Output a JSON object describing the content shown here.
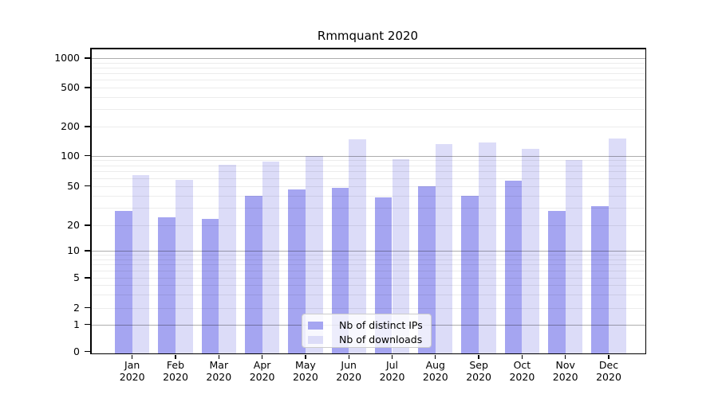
{
  "title": "Rmmquant 2020",
  "legend": {
    "items": [
      {
        "label": "Nb of distinct IPs"
      },
      {
        "label": "Nb of downloads"
      }
    ]
  },
  "chart_data": {
    "type": "bar",
    "title": "Rmmquant 2020",
    "x_months": [
      "Jan",
      "Feb",
      "Mar",
      "Apr",
      "May",
      "Jun",
      "Jul",
      "Aug",
      "Sep",
      "Oct",
      "Nov",
      "Dec"
    ],
    "x_year": "2020",
    "series": [
      {
        "name": "Nb of distinct IPs",
        "color": "#a5a5f1",
        "values": [
          28,
          24,
          23,
          40,
          46,
          48,
          38,
          50,
          40,
          56,
          28,
          31
        ]
      },
      {
        "name": "Nb of downloads",
        "color": "#dcdcf8",
        "values": [
          64,
          57,
          81,
          87,
          99,
          149,
          92,
          131,
          137,
          117,
          91,
          150
        ]
      }
    ],
    "yscale": "symlog",
    "yticks": [
      0,
      1,
      2,
      5,
      10,
      20,
      50,
      100,
      200,
      500,
      1000
    ],
    "ylim": [
      0,
      1400
    ],
    "grid": {
      "horizontal_major": true,
      "horizontal_minor": true,
      "vertical": false
    },
    "legend_position": "lower-center",
    "colors": {
      "major_grid": "#adadad",
      "minor_grid": "#ededed",
      "axis": "#000000",
      "text": "#000000",
      "background": "#ffffff"
    }
  }
}
